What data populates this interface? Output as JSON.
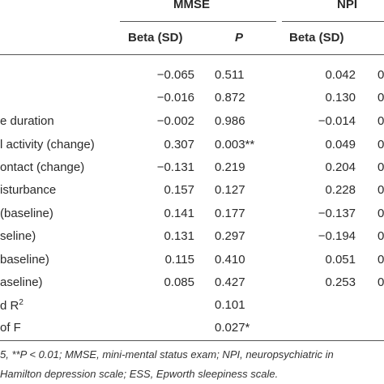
{
  "header": {
    "group_mmse": "MMSE",
    "group_npi": "NPI",
    "col_beta_mmse": "Beta (SD)",
    "col_p_mmse": "P",
    "col_beta_npi": "Beta (SD)"
  },
  "rows": [
    {
      "label": "",
      "mmse_beta": "−0.065",
      "mmse_p": "0.511",
      "npi_beta": "0.042",
      "npi_p_frag": "0"
    },
    {
      "label": "",
      "mmse_beta": "−0.016",
      "mmse_p": "0.872",
      "npi_beta": "0.130",
      "npi_p_frag": "0"
    },
    {
      "label": "e duration",
      "mmse_beta": "−0.002",
      "mmse_p": "0.986",
      "npi_beta": "−0.014",
      "npi_p_frag": "0"
    },
    {
      "label": "l activity (change)",
      "mmse_beta": "0.307",
      "mmse_p": "0.003**",
      "npi_beta": "0.049",
      "npi_p_frag": "0"
    },
    {
      "label": "ontact (change)",
      "mmse_beta": "−0.131",
      "mmse_p": "0.219",
      "npi_beta": "0.204",
      "npi_p_frag": "0"
    },
    {
      "label": "isturbance",
      "mmse_beta": "0.157",
      "mmse_p": "0.127",
      "npi_beta": "0.228",
      "npi_p_frag": "0"
    },
    {
      "label": "(baseline)",
      "mmse_beta": "0.141",
      "mmse_p": "0.177",
      "npi_beta": "−0.137",
      "npi_p_frag": "0"
    },
    {
      "label": "seline)",
      "mmse_beta": "0.131",
      "mmse_p": "0.297",
      "npi_beta": "−0.194",
      "npi_p_frag": "0"
    },
    {
      "label": "baseline)",
      "mmse_beta": "0.115",
      "mmse_p": "0.410",
      "npi_beta": "0.051",
      "npi_p_frag": "0"
    },
    {
      "label": "aseline)",
      "mmse_beta": "0.085",
      "mmse_p": "0.427",
      "npi_beta": "0.253",
      "npi_p_frag": "0"
    }
  ],
  "summary": [
    {
      "label": "d R",
      "sup": "2",
      "mmse_p": "0.101"
    },
    {
      "label": "of F",
      "sup": "",
      "mmse_p": "0.027*"
    }
  ],
  "footnotes": [
    "5, **P < 0.01; MMSE, mini-mental status exam; NPI, neuropsychiatric in",
    "Hamilton depression scale; ESS, Epworth sleepiness scale."
  ]
}
